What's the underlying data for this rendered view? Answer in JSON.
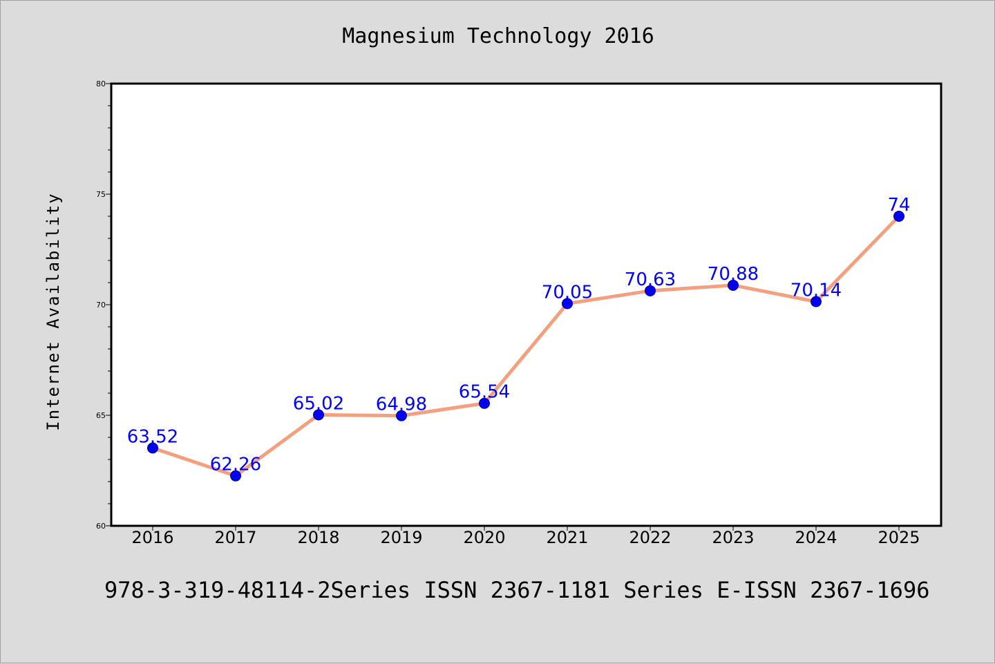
{
  "chart_data": {
    "type": "line",
    "title": "Magnesium Technology 2016",
    "xlabel": "",
    "ylabel": "Internet Availability",
    "categories": [
      "2016",
      "2017",
      "2018",
      "2019",
      "2020",
      "2021",
      "2022",
      "2023",
      "2024",
      "2025"
    ],
    "series": [
      {
        "values": [
          63.52,
          62.26,
          65.02,
          64.98,
          65.54,
          70.05,
          70.63,
          70.88,
          70.14,
          74
        ],
        "labels": [
          "63.52",
          "62.26",
          "65.02",
          "64.98",
          "65.54",
          "70.05",
          "70.63",
          "70.88",
          "70.14",
          "74"
        ],
        "line_color": "#f4a07f",
        "marker_color": "#0000ee",
        "label_color": "#0000ff"
      }
    ],
    "ylim": [
      60,
      80
    ],
    "yticks": [
      "60",
      "65",
      "70",
      "75",
      "80"
    ],
    "grid": false,
    "legend": "none"
  },
  "footer": "978-3-319-48114-2Series ISSN 2367-1181 Series E-ISSN 2367-1696"
}
